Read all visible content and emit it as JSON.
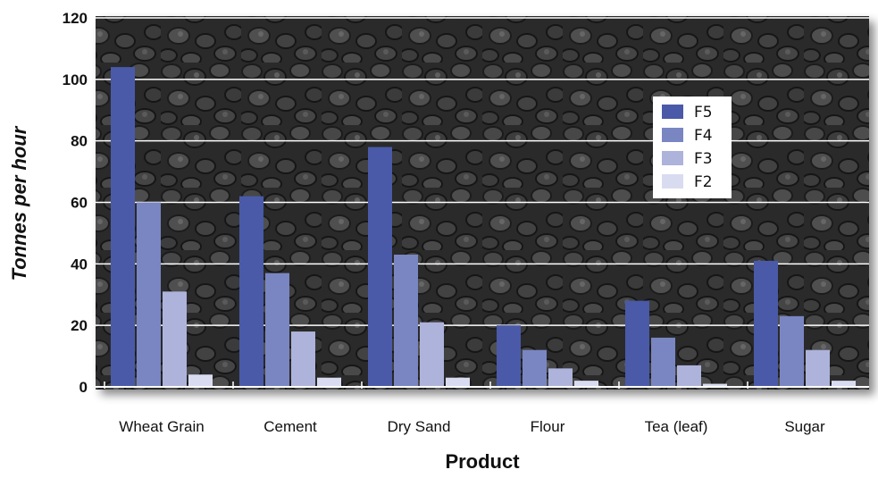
{
  "chart_data": {
    "type": "bar",
    "title": "",
    "xlabel": "Product",
    "ylabel": "Tonnes per hour",
    "ylim": [
      0,
      120
    ],
    "yticks": [
      0,
      20,
      40,
      60,
      80,
      100,
      120
    ],
    "grid": true,
    "legend_position": "top-right",
    "categories": [
      "Wheat Grain",
      "Cement",
      "Dry Sand",
      "Flour",
      "Tea (leaf)",
      "Sugar"
    ],
    "series": [
      {
        "name": "F5",
        "color": "#4a5aa8",
        "values": [
          104,
          62,
          78,
          20,
          28,
          41
        ]
      },
      {
        "name": "F4",
        "color": "#7a86c2",
        "values": [
          60,
          37,
          43,
          12,
          16,
          23
        ]
      },
      {
        "name": "F3",
        "color": "#adb3db",
        "values": [
          31,
          18,
          21,
          6,
          7,
          12
        ]
      },
      {
        "name": "F2",
        "color": "#d9dcf0",
        "values": [
          4,
          3,
          3,
          2,
          1,
          2
        ]
      }
    ]
  }
}
